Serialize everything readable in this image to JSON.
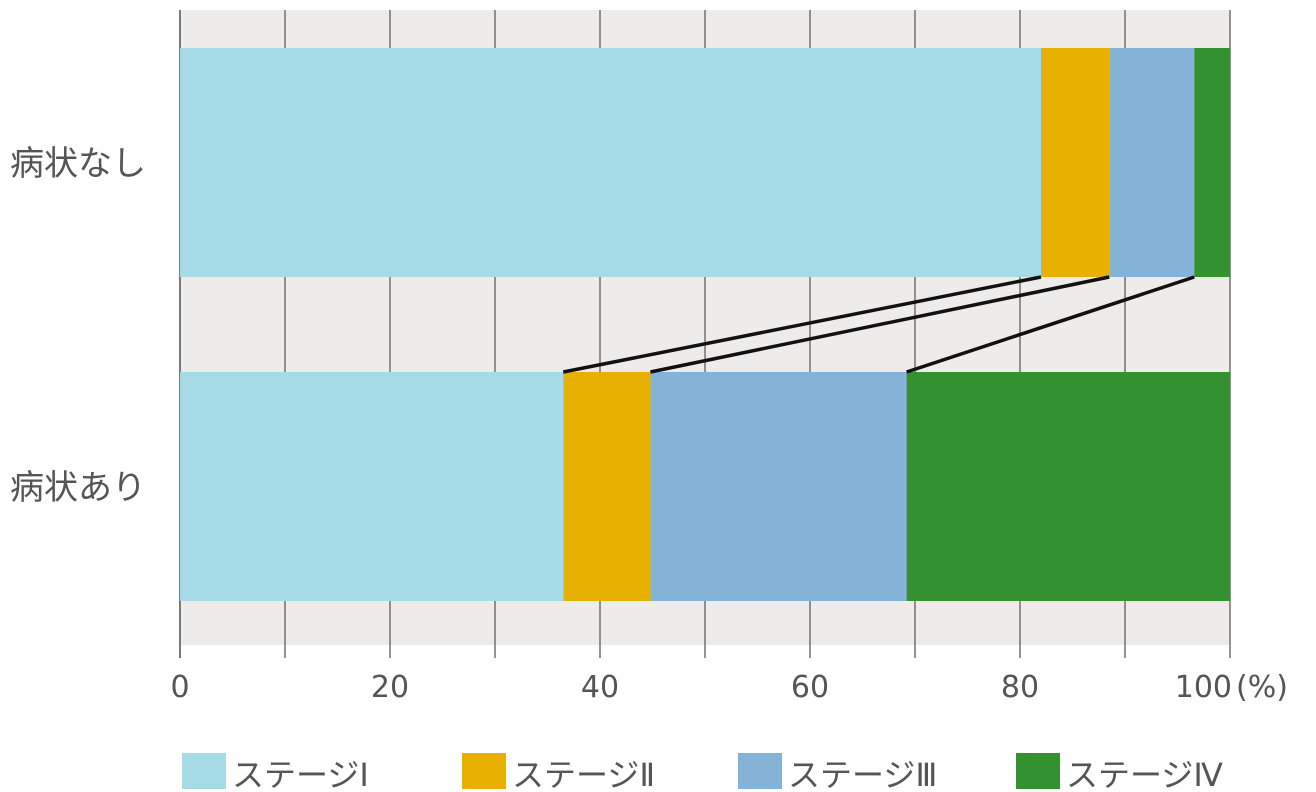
{
  "chart_data": {
    "type": "bar",
    "orientation": "horizontal",
    "stacked": true,
    "normalized_percent": true,
    "categories": [
      "病状なし",
      "病状あり"
    ],
    "series": [
      {
        "name": "ステージⅠ",
        "color": "#a5dae6",
        "values": [
          82.0,
          36.5
        ]
      },
      {
        "name": "ステージⅡ",
        "color": "#e8b000",
        "values": [
          6.5,
          8.3
        ]
      },
      {
        "name": "ステージⅢ",
        "color": "#85b3d8",
        "values": [
          8.1,
          24.4
        ]
      },
      {
        "name": "ステージⅣ",
        "color": "#33922f",
        "values": [
          3.4,
          30.8
        ]
      }
    ],
    "xlim": [
      0,
      100
    ],
    "x_ticks": [
      0,
      20,
      40,
      60,
      80,
      100
    ],
    "x_unit": "(%)",
    "grid": true,
    "grid_interval": 10,
    "connector_lines": true,
    "legend_position": "bottom"
  },
  "colors": {
    "plot_background": "#edecea",
    "grid_line": "#7a7a7a",
    "connector_line": "#111111"
  }
}
